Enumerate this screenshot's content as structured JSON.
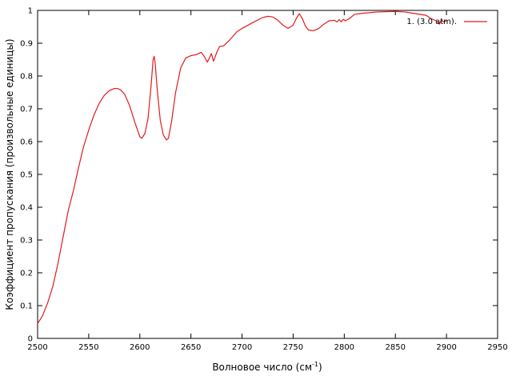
{
  "chart_data": {
    "type": "line",
    "title": "",
    "xlabel": "Волновое число (см",
    "xlabel_sup": "-1",
    "xlabel_close": ")",
    "ylabel": "Коэффициент пропускания (произвольные единицы)",
    "xlim": [
      2500,
      2950
    ],
    "ylim": [
      0,
      1
    ],
    "xticks": [
      2500,
      2550,
      2600,
      2650,
      2700,
      2750,
      2800,
      2850,
      2900,
      2950
    ],
    "yticks": [
      0,
      0.1,
      0.2,
      0.3,
      0.4,
      0.5,
      0.6,
      0.7,
      0.8,
      0.9,
      1
    ],
    "grid": false,
    "legend_position": "top-right",
    "series": [
      {
        "name": "1. (3.0 atm).",
        "color": "#e41a1c",
        "x": [
          2500,
          2505,
          2510,
          2515,
          2520,
          2525,
          2530,
          2535,
          2540,
          2545,
          2550,
          2555,
          2560,
          2565,
          2570,
          2575,
          2578,
          2581,
          2585,
          2590,
          2595,
          2600,
          2602,
          2605,
          2608,
          2611,
          2613,
          2614,
          2615,
          2617,
          2620,
          2623,
          2626,
          2628,
          2631,
          2635,
          2640,
          2645,
          2650,
          2655,
          2660,
          2663,
          2666,
          2668,
          2670,
          2671,
          2672,
          2673,
          2675,
          2678,
          2682,
          2688,
          2695,
          2700,
          2710,
          2720,
          2725,
          2730,
          2735,
          2740,
          2745,
          2750,
          2753,
          2756,
          2759,
          2762,
          2765,
          2770,
          2775,
          2780,
          2785,
          2790,
          2793,
          2795,
          2797,
          2799,
          2801,
          2805,
          2810,
          2815,
          2820,
          2825,
          2830,
          2840,
          2850,
          2860,
          2870,
          2880,
          2885,
          2890,
          2893,
          2895,
          2897,
          2900
        ],
        "values": [
          0.045,
          0.07,
          0.11,
          0.16,
          0.23,
          0.31,
          0.39,
          0.45,
          0.52,
          0.585,
          0.635,
          0.68,
          0.715,
          0.74,
          0.755,
          0.762,
          0.762,
          0.758,
          0.745,
          0.71,
          0.66,
          0.615,
          0.61,
          0.625,
          0.67,
          0.77,
          0.85,
          0.86,
          0.84,
          0.76,
          0.665,
          0.62,
          0.605,
          0.61,
          0.66,
          0.75,
          0.825,
          0.855,
          0.862,
          0.865,
          0.872,
          0.86,
          0.842,
          0.855,
          0.868,
          0.858,
          0.845,
          0.852,
          0.87,
          0.89,
          0.892,
          0.91,
          0.935,
          0.945,
          0.962,
          0.978,
          0.982,
          0.98,
          0.97,
          0.955,
          0.945,
          0.955,
          0.975,
          0.99,
          0.975,
          0.952,
          0.94,
          0.938,
          0.945,
          0.958,
          0.968,
          0.97,
          0.965,
          0.972,
          0.965,
          0.973,
          0.968,
          0.975,
          0.988,
          0.99,
          0.992,
          0.993,
          0.995,
          0.996,
          0.997,
          0.995,
          0.99,
          0.985,
          0.975,
          0.968,
          0.958,
          0.97,
          0.965,
          0.968
        ]
      }
    ]
  }
}
